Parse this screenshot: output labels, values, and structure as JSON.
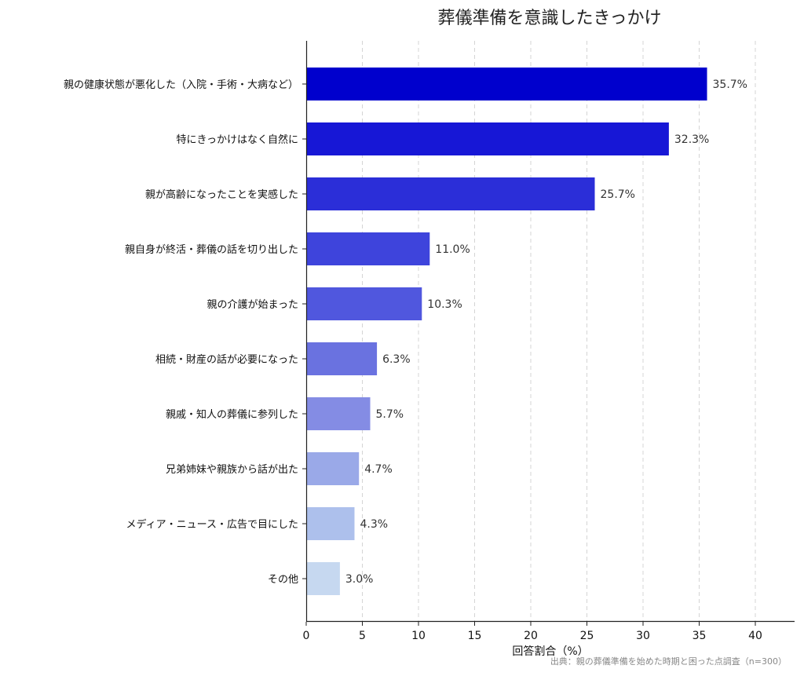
{
  "chart_data": {
    "type": "bar",
    "orientation": "horizontal",
    "title": "葬儀準備を意識したきっかけ",
    "xlabel": "回答割合（%）",
    "ylabel": "",
    "xlim": [
      0,
      43
    ],
    "xticks": [
      0,
      5,
      10,
      15,
      20,
      25,
      30,
      35,
      40
    ],
    "grid": "x-dashed",
    "categories": [
      "親の健康状態が悪化した（入院・手術・大病など）",
      "特にきっかけはなく自然に",
      "親が高齢になったことを実感した",
      "親自身が終活・葬儀の話を切り出した",
      "親の介護が始まった",
      "相続・財産の話が必要になった",
      "親戚・知人の葬儀に参列した",
      "兄弟姉妹や親族から話が出た",
      "メディア・ニュース・広告で目にした",
      "その他"
    ],
    "values": [
      35.7,
      32.3,
      25.7,
      11.0,
      10.3,
      6.3,
      5.7,
      4.7,
      4.3,
      3.0
    ],
    "value_labels": [
      "35.7%",
      "32.3%",
      "25.7%",
      "11.0%",
      "10.3%",
      "6.3%",
      "5.7%",
      "4.7%",
      "4.3%",
      "3.0%"
    ],
    "colors": [
      "#0000cd",
      "#1717d6",
      "#2b2ed8",
      "#3e44dc",
      "#5057de",
      "#6a72e0",
      "#848ce4",
      "#9aa9e8",
      "#adc0ec",
      "#c6d8f0"
    ],
    "source": "出典：親の葬儀準備を始めた時期と困った点調査（n=300）"
  }
}
